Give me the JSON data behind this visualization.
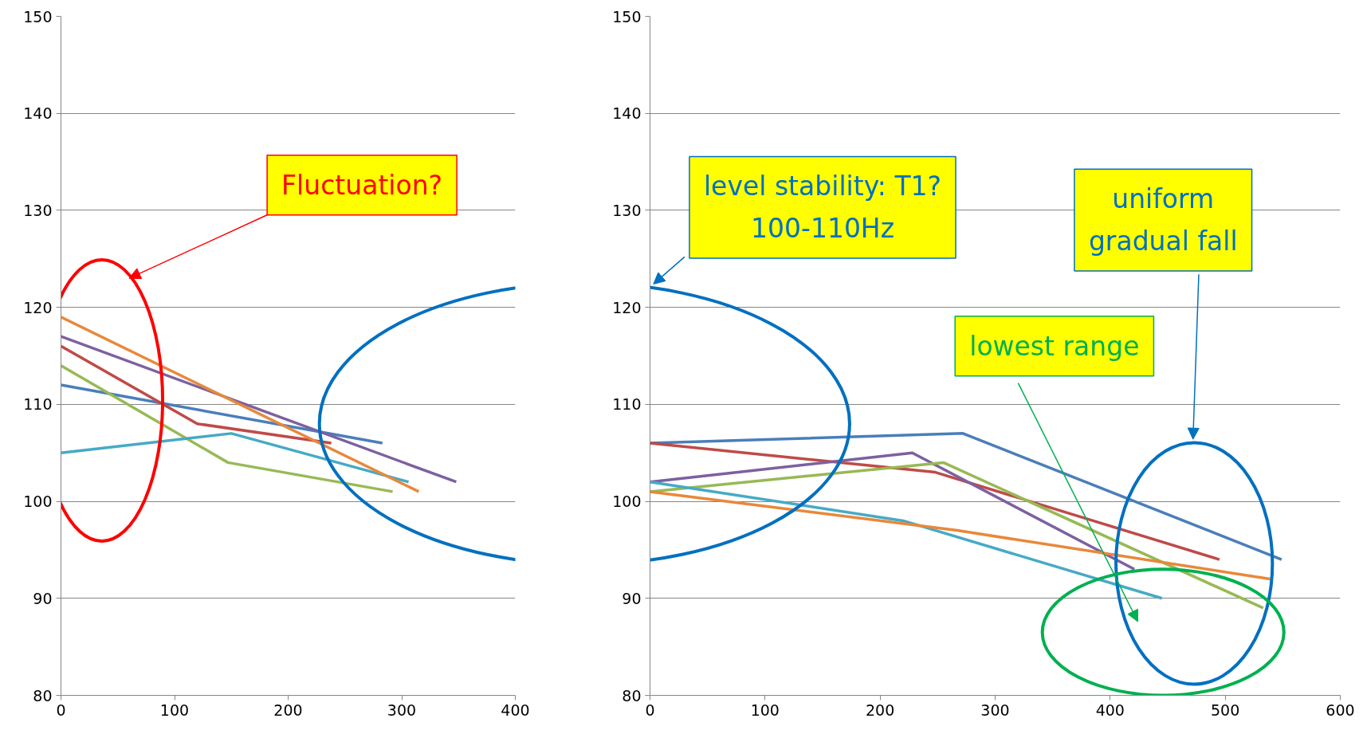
{
  "chart_data": [
    {
      "type": "line",
      "xlim": [
        0,
        400
      ],
      "xticks": [
        0,
        100,
        200,
        300,
        400
      ],
      "ylim": [
        80,
        150
      ],
      "yticks": [
        80,
        90,
        100,
        110,
        120,
        130,
        140,
        150
      ],
      "grid": "y",
      "series": [
        {
          "color": "#4a7ebb",
          "x": [
            0,
            283
          ],
          "values": [
            112,
            106
          ]
        },
        {
          "color": "#be4b48",
          "x": [
            0,
            120,
            238
          ],
          "values": [
            116,
            108,
            106
          ]
        },
        {
          "color": "#98b954",
          "x": [
            0,
            147,
            292
          ],
          "values": [
            114,
            104,
            101
          ]
        },
        {
          "color": "#7d60a0",
          "x": [
            0,
            348
          ],
          "values": [
            117,
            102
          ]
        },
        {
          "color": "#46aac5",
          "x": [
            0,
            150,
            306
          ],
          "values": [
            105,
            107,
            102
          ]
        },
        {
          "color": "#e8883a",
          "x": [
            0,
            315
          ],
          "values": [
            119,
            101
          ]
        }
      ],
      "annotations": [
        "Fluctuation?"
      ]
    },
    {
      "type": "line",
      "xlim": [
        0,
        600
      ],
      "xticks": [
        0,
        100,
        200,
        300,
        400,
        500,
        600
      ],
      "ylim": [
        80,
        150
      ],
      "yticks": [
        80,
        90,
        100,
        110,
        120,
        130,
        140,
        150
      ],
      "grid": "y",
      "series": [
        {
          "color": "#4a7ebb",
          "x": [
            0,
            272,
            549
          ],
          "values": [
            106,
            107,
            94
          ]
        },
        {
          "color": "#be4b48",
          "x": [
            0,
            248,
            495
          ],
          "values": [
            106,
            103,
            94
          ]
        },
        {
          "color": "#7d60a0",
          "x": [
            0,
            228,
            421
          ],
          "values": [
            102,
            105,
            93
          ]
        },
        {
          "color": "#98b954",
          "x": [
            0,
            255,
            533
          ],
          "values": [
            101,
            104,
            89
          ]
        },
        {
          "color": "#46aac5",
          "x": [
            0,
            220,
            445
          ],
          "values": [
            102,
            98,
            90
          ]
        },
        {
          "color": "#e8883a",
          "x": [
            0,
            267,
            539
          ],
          "values": [
            101,
            97,
            92
          ]
        }
      ],
      "annotations": [
        "level stability: T1?\n100-110Hz",
        "uniform\ngradual fall",
        "lowest range"
      ]
    }
  ]
}
